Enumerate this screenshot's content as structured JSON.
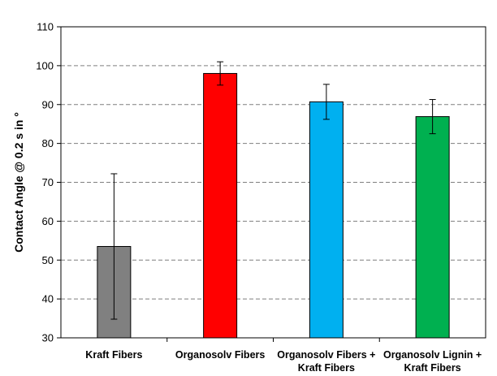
{
  "chart_data": {
    "type": "bar",
    "title": "",
    "xlabel": "",
    "ylabel": "Contact Angle @ 0.2 s in °",
    "ylim": [
      30,
      110
    ],
    "yticks": [
      30,
      40,
      50,
      60,
      70,
      80,
      90,
      100,
      110
    ],
    "grid": "horizontal-dashed",
    "categories": [
      [
        "Kraft Fibers"
      ],
      [
        "Organosolv Fibers"
      ],
      [
        "Organosolv Fibers +",
        "Kraft Fibers"
      ],
      [
        "Organosolv Lignin +",
        "Kraft Fibers"
      ]
    ],
    "values": [
      53.5,
      98,
      90.7,
      86.9
    ],
    "errors": [
      18.7,
      3,
      4.5,
      4.4
    ],
    "colors": [
      "#808080",
      "#ff0000",
      "#00b0f0",
      "#00b050"
    ]
  }
}
